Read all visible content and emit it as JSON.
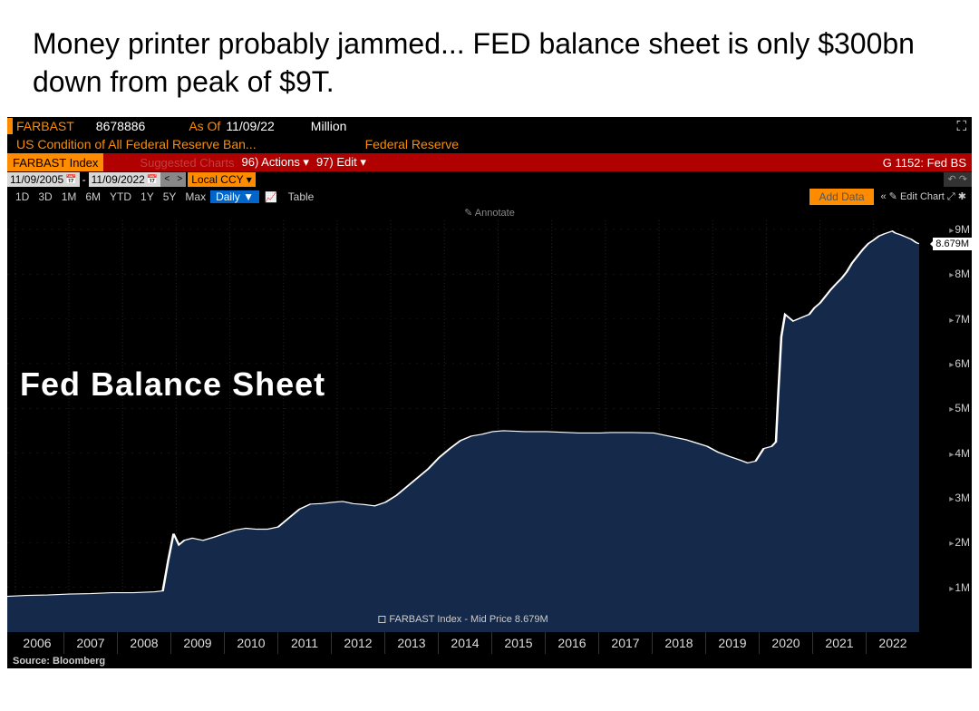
{
  "title": "Money printer probably jammed... FED balance sheet is only $300bn down from peak of $9T.",
  "terminal": {
    "hdr1": {
      "ticker": "FARBAST",
      "value": "8678886",
      "asof_label": "As Of",
      "asof_date": "11/09/22",
      "unit": "Million"
    },
    "hdr2": {
      "desc": "US Condition of All Federal Reserve Ban...",
      "source": "Federal Reserve"
    },
    "redbar": {
      "index": "FARBAST Index",
      "suggested": "Suggested Charts",
      "actions": "96) Actions ▾",
      "edit": "97) Edit ▾",
      "additional": "G 1152: Fed BS"
    },
    "daterow": {
      "start": "11/09/2005",
      "end": "11/09/2022",
      "ccy": "Local CCY"
    },
    "periods": [
      "1D",
      "3D",
      "1M",
      "6M",
      "YTD",
      "1Y",
      "5Y",
      "Max"
    ],
    "freq": "Daily ▼",
    "table_btn": "Table",
    "add_data": "Add Data",
    "edit_chart": "« ✎ Edit Chart  ⤢  ✱",
    "annotate": "✎ Annotate"
  },
  "chart": {
    "type": "area",
    "title": "Fed Balance Sheet",
    "legend": "FARBAST Index - Mid Price 8.679M",
    "line_color": "#ffffff",
    "fill_color": "#152a4a",
    "background_color": "#000000",
    "grid_color": "#2a2a2a",
    "ylim": [
      0,
      9.2
    ],
    "yticks": [
      1,
      2,
      3,
      4,
      5,
      6,
      7,
      8,
      9
    ],
    "ytick_labels": [
      "1M",
      "2M",
      "3M",
      "4M",
      "5M",
      "6M",
      "7M",
      "8M",
      "9M"
    ],
    "current_value_label": "8.679M",
    "current_value": 8.679,
    "xlim": [
      2005.85,
      2022.85
    ],
    "xticks_labels": [
      "2006",
      "2007",
      "2008",
      "2009",
      "2010",
      "2011",
      "2012",
      "2013",
      "2014",
      "2015",
      "2016",
      "2017",
      "2018",
      "2019",
      "2020",
      "2021",
      "2022"
    ],
    "series": [
      [
        2005.85,
        0.8
      ],
      [
        2006.2,
        0.82
      ],
      [
        2006.6,
        0.83
      ],
      [
        2007.0,
        0.85
      ],
      [
        2007.4,
        0.86
      ],
      [
        2007.8,
        0.88
      ],
      [
        2008.2,
        0.88
      ],
      [
        2008.6,
        0.9
      ],
      [
        2008.75,
        0.92
      ],
      [
        2008.85,
        1.6
      ],
      [
        2008.95,
        2.2
      ],
      [
        2009.05,
        1.95
      ],
      [
        2009.15,
        2.05
      ],
      [
        2009.3,
        2.1
      ],
      [
        2009.5,
        2.05
      ],
      [
        2009.7,
        2.12
      ],
      [
        2009.9,
        2.2
      ],
      [
        2010.1,
        2.28
      ],
      [
        2010.3,
        2.32
      ],
      [
        2010.5,
        2.3
      ],
      [
        2010.7,
        2.3
      ],
      [
        2010.9,
        2.35
      ],
      [
        2011.1,
        2.55
      ],
      [
        2011.3,
        2.75
      ],
      [
        2011.5,
        2.86
      ],
      [
        2011.7,
        2.87
      ],
      [
        2011.9,
        2.9
      ],
      [
        2012.1,
        2.92
      ],
      [
        2012.3,
        2.87
      ],
      [
        2012.5,
        2.85
      ],
      [
        2012.7,
        2.82
      ],
      [
        2012.9,
        2.9
      ],
      [
        2013.1,
        3.05
      ],
      [
        2013.3,
        3.25
      ],
      [
        2013.5,
        3.45
      ],
      [
        2013.7,
        3.65
      ],
      [
        2013.9,
        3.9
      ],
      [
        2014.1,
        4.1
      ],
      [
        2014.3,
        4.28
      ],
      [
        2014.5,
        4.38
      ],
      [
        2014.7,
        4.42
      ],
      [
        2014.9,
        4.48
      ],
      [
        2015.1,
        4.5
      ],
      [
        2015.5,
        4.48
      ],
      [
        2015.9,
        4.48
      ],
      [
        2016.1,
        4.47
      ],
      [
        2016.5,
        4.45
      ],
      [
        2016.9,
        4.45
      ],
      [
        2017.1,
        4.46
      ],
      [
        2017.5,
        4.46
      ],
      [
        2017.9,
        4.45
      ],
      [
        2018.1,
        4.4
      ],
      [
        2018.5,
        4.3
      ],
      [
        2018.9,
        4.15
      ],
      [
        2019.1,
        4.02
      ],
      [
        2019.3,
        3.93
      ],
      [
        2019.5,
        3.85
      ],
      [
        2019.65,
        3.78
      ],
      [
        2019.8,
        3.82
      ],
      [
        2019.95,
        4.1
      ],
      [
        2020.1,
        4.15
      ],
      [
        2020.18,
        4.25
      ],
      [
        2020.22,
        5.25
      ],
      [
        2020.28,
        6.6
      ],
      [
        2020.35,
        7.1
      ],
      [
        2020.4,
        7.05
      ],
      [
        2020.5,
        6.95
      ],
      [
        2020.6,
        7.0
      ],
      [
        2020.7,
        7.05
      ],
      [
        2020.8,
        7.1
      ],
      [
        2020.9,
        7.25
      ],
      [
        2021.0,
        7.35
      ],
      [
        2021.1,
        7.5
      ],
      [
        2021.2,
        7.65
      ],
      [
        2021.3,
        7.78
      ],
      [
        2021.4,
        7.9
      ],
      [
        2021.5,
        8.05
      ],
      [
        2021.6,
        8.25
      ],
      [
        2021.7,
        8.4
      ],
      [
        2021.8,
        8.55
      ],
      [
        2021.9,
        8.68
      ],
      [
        2022.0,
        8.76
      ],
      [
        2022.1,
        8.85
      ],
      [
        2022.2,
        8.9
      ],
      [
        2022.3,
        8.94
      ],
      [
        2022.35,
        8.96
      ],
      [
        2022.4,
        8.92
      ],
      [
        2022.5,
        8.88
      ],
      [
        2022.6,
        8.83
      ],
      [
        2022.7,
        8.78
      ],
      [
        2022.8,
        8.7
      ],
      [
        2022.85,
        8.679
      ]
    ]
  },
  "source": "Source: Bloomberg"
}
